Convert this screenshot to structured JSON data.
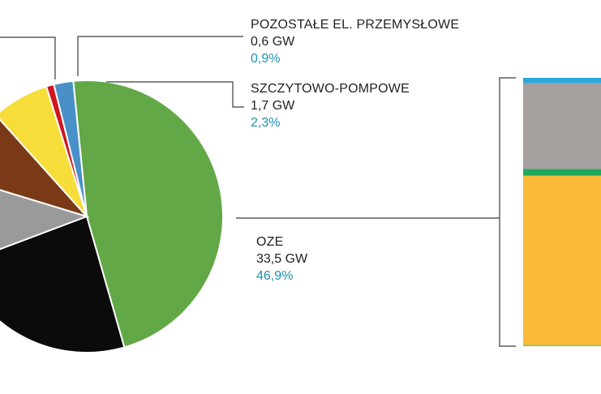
{
  "colors": {
    "oze": "#62a847",
    "pumped": "#4a90c8",
    "other_industrial": "#d0151e",
    "yellow": "#f6dd3a",
    "brown": "#7a3a18",
    "black": "#0b0b0b",
    "gray_slice": "#9a9a9a",
    "line": "#3a3a3a",
    "pct_text": "#1f8fb0",
    "bar_top": "#2aa7dc",
    "bar_gray": "#a59f9e",
    "bar_green": "#1faa5a",
    "bar_orange": "#fbb93a",
    "bar_bottom": "#8fc04a"
  },
  "chart_data": [
    {
      "type": "pie",
      "slices": [
        {
          "key": "oze",
          "label": "OZE",
          "value_gw": 33.5,
          "share_pct": 46.9,
          "color": "#62a847"
        },
        {
          "key": "black",
          "label": "",
          "value_gw": null,
          "share_pct": 23.6,
          "color": "#0b0b0b"
        },
        {
          "key": "gray_slice",
          "label": "",
          "value_gw": null,
          "share_pct": 10.4,
          "color": "#9a9a9a"
        },
        {
          "key": "brown",
          "label": "",
          "value_gw": null,
          "share_pct": 8.6,
          "color": "#7a3a18"
        },
        {
          "key": "yellow",
          "label": "",
          "value_gw": null,
          "share_pct": 6.8,
          "color": "#f6dd3a"
        },
        {
          "key": "other_industrial",
          "label": "POZOSTAŁE EL. PRZEMYSŁOWE",
          "value_gw": 0.6,
          "share_pct": 0.9,
          "color": "#d0151e"
        },
        {
          "key": "pumped",
          "label": "SZCZYTOWO-POMPOWE",
          "value_gw": 1.7,
          "share_pct": 2.3,
          "color": "#4a90c8"
        }
      ]
    },
    {
      "type": "bar",
      "stacked": true,
      "segments_top_to_bottom": [
        {
          "key": "bar_top",
          "share_pct": 2,
          "color": "#2aa7dc"
        },
        {
          "key": "bar_gray",
          "share_pct": 32,
          "color": "#a59f9e"
        },
        {
          "key": "bar_green",
          "share_pct": 2.5,
          "color": "#1faa5a"
        },
        {
          "key": "bar_orange",
          "share_pct": 63,
          "color": "#fbb93a"
        },
        {
          "key": "bar_bottom",
          "share_pct": 0.5,
          "color": "#8fc04a"
        }
      ]
    }
  ],
  "labels": {
    "other_industrial": {
      "name": "POZOSTAŁE EL. PRZEMYSŁOWE",
      "value": "0,6 GW",
      "pct": "0,9%"
    },
    "pumped": {
      "name": "SZCZYTOWO-POMPOWE",
      "value": "1,7 GW",
      "pct": "2,3%"
    },
    "oze": {
      "name": "OZE",
      "value": "33,5 GW",
      "pct": "46,9%"
    }
  }
}
